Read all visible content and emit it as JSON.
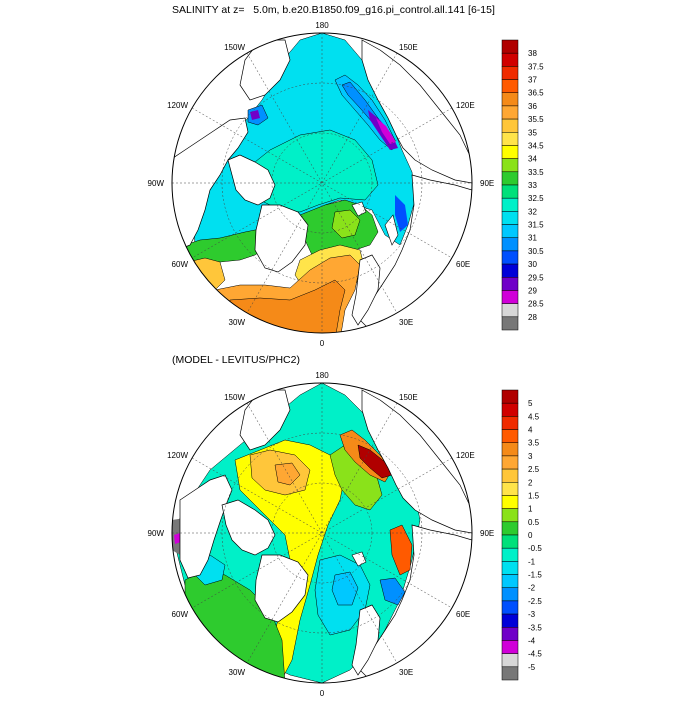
{
  "panels": [
    {
      "title": "SALINITY at z=   5.0m, b.e20.B1850.f09_g16.pi_control.all.141 [6-15]",
      "lon_labels": {
        "top": "180",
        "bottom": "0",
        "left": "90W",
        "right": "90E",
        "ul2": "150W",
        "ul1": "120W",
        "ur2": "150E",
        "ur1": "120E",
        "ll1": "60W",
        "ll2": "30W",
        "lr1": "60E",
        "lr2": "30E"
      },
      "colorbar": {
        "labels": [
          "38",
          "37.5",
          "37",
          "36.5",
          "36",
          "35.5",
          "35",
          "34.5",
          "34",
          "33.5",
          "33",
          "32.5",
          "32",
          "31.5",
          "31",
          "30.5",
          "30",
          "29.5",
          "29",
          "28.5",
          "28"
        ],
        "colors": [
          "#b00000",
          "#d00000",
          "#f02c00",
          "#ff5a00",
          "#f58a18",
          "#ffa733",
          "#ffc63a",
          "#ffe44a",
          "#ffff00",
          "#8ae21a",
          "#2ecb2e",
          "#00e07a",
          "#00f0c8",
          "#00e0f0",
          "#00c8ff",
          "#0090ff",
          "#0050ff",
          "#0000d8",
          "#7000c8",
          "#d000d8",
          "#d8d8d8",
          "#787878"
        ]
      }
    },
    {
      "title": "(MODEL - LEVITUS/PHC2)",
      "lon_labels": {
        "top": "180",
        "bottom": "0",
        "left": "90W",
        "right": "90E",
        "ul2": "150W",
        "ul1": "120W",
        "ur2": "150E",
        "ur1": "120E",
        "ll1": "60W",
        "ll2": "30W",
        "lr1": "60E",
        "lr2": "30E"
      },
      "colorbar": {
        "labels": [
          "5",
          "4.5",
          "4",
          "3.5",
          "3",
          "2.5",
          "2",
          "1.5",
          "1",
          "0.5",
          "0",
          "-0.5",
          "-1",
          "-1.5",
          "-2",
          "-2.5",
          "-3",
          "-3.5",
          "-4",
          "-4.5",
          "-5"
        ],
        "colors": [
          "#b00000",
          "#d00000",
          "#f02c00",
          "#ff5a00",
          "#f58a18",
          "#ffa733",
          "#ffc63a",
          "#ffe44a",
          "#ffff00",
          "#8ae21a",
          "#2ecb2e",
          "#00e07a",
          "#00f0c8",
          "#00e0f0",
          "#00c8ff",
          "#0090ff",
          "#0050ff",
          "#0000d8",
          "#7000c8",
          "#d000d8",
          "#d8d8d8",
          "#787878"
        ]
      }
    }
  ]
}
